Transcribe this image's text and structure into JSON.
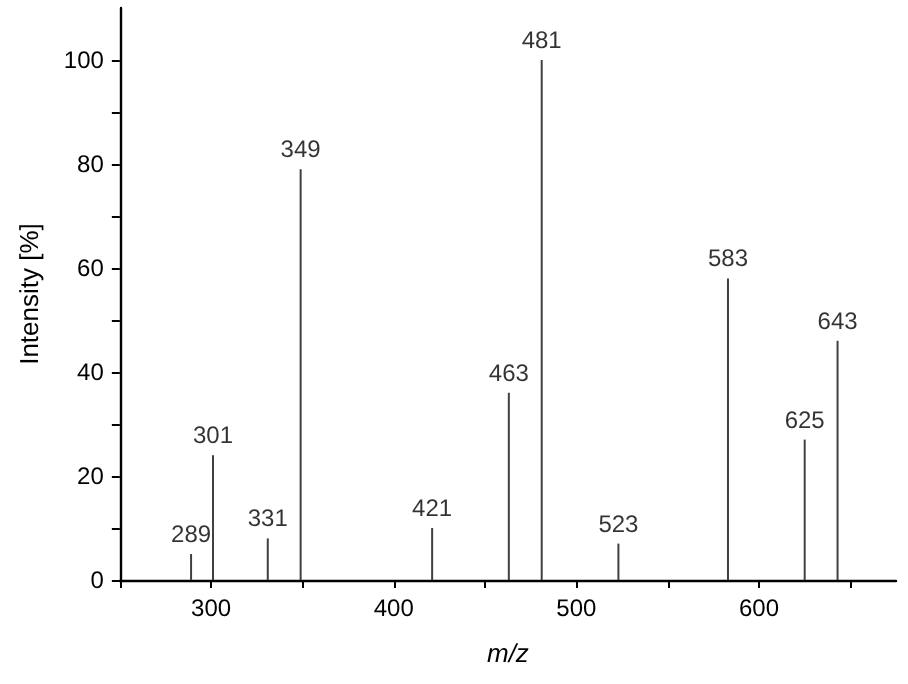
{
  "chart_data": {
    "type": "bar",
    "xlabel": "m/z",
    "ylabel": "Intensity [%]",
    "x": [
      289,
      301,
      331,
      349,
      421,
      463,
      481,
      523,
      583,
      625,
      643
    ],
    "values": [
      5,
      24,
      8,
      79,
      10,
      36,
      100,
      7,
      58,
      27,
      46
    ],
    "annotations": [
      {
        "text": "289",
        "x": 289,
        "y": 5
      },
      {
        "text": "301",
        "x": 301,
        "y": 24
      },
      {
        "text": "331",
        "x": 331,
        "y": 8
      },
      {
        "text": "349",
        "x": 349,
        "y": 79
      },
      {
        "text": "421",
        "x": 421,
        "y": 10
      },
      {
        "text": "463",
        "x": 463,
        "y": 36
      },
      {
        "text": "481",
        "x": 481,
        "y": 100
      },
      {
        "text": "523",
        "x": 523,
        "y": 7
      },
      {
        "text": "583",
        "x": 583,
        "y": 58
      },
      {
        "text": "625",
        "x": 625,
        "y": 27
      },
      {
        "text": "643",
        "x": 643,
        "y": 46
      }
    ],
    "color": "#404040",
    "xlim": [
      250,
      675
    ],
    "xticks": [
      {
        "value": 250,
        "label": null
      },
      300,
      {
        "value": 350,
        "label": null
      },
      400,
      {
        "value": 450,
        "label": null
      },
      500,
      {
        "value": 550,
        "label": null
      },
      600,
      {
        "value": 650,
        "label": null
      }
    ],
    "ylim": [
      0,
      110
    ],
    "yticks": [
      0,
      {
        "value": 10,
        "label": null
      },
      20,
      {
        "value": 30,
        "label": null
      },
      40,
      {
        "value": 50,
        "label": null
      },
      60,
      {
        "value": 70,
        "label": null
      },
      80,
      {
        "value": 90,
        "label": null
      },
      100
    ],
    "grid": false
  }
}
